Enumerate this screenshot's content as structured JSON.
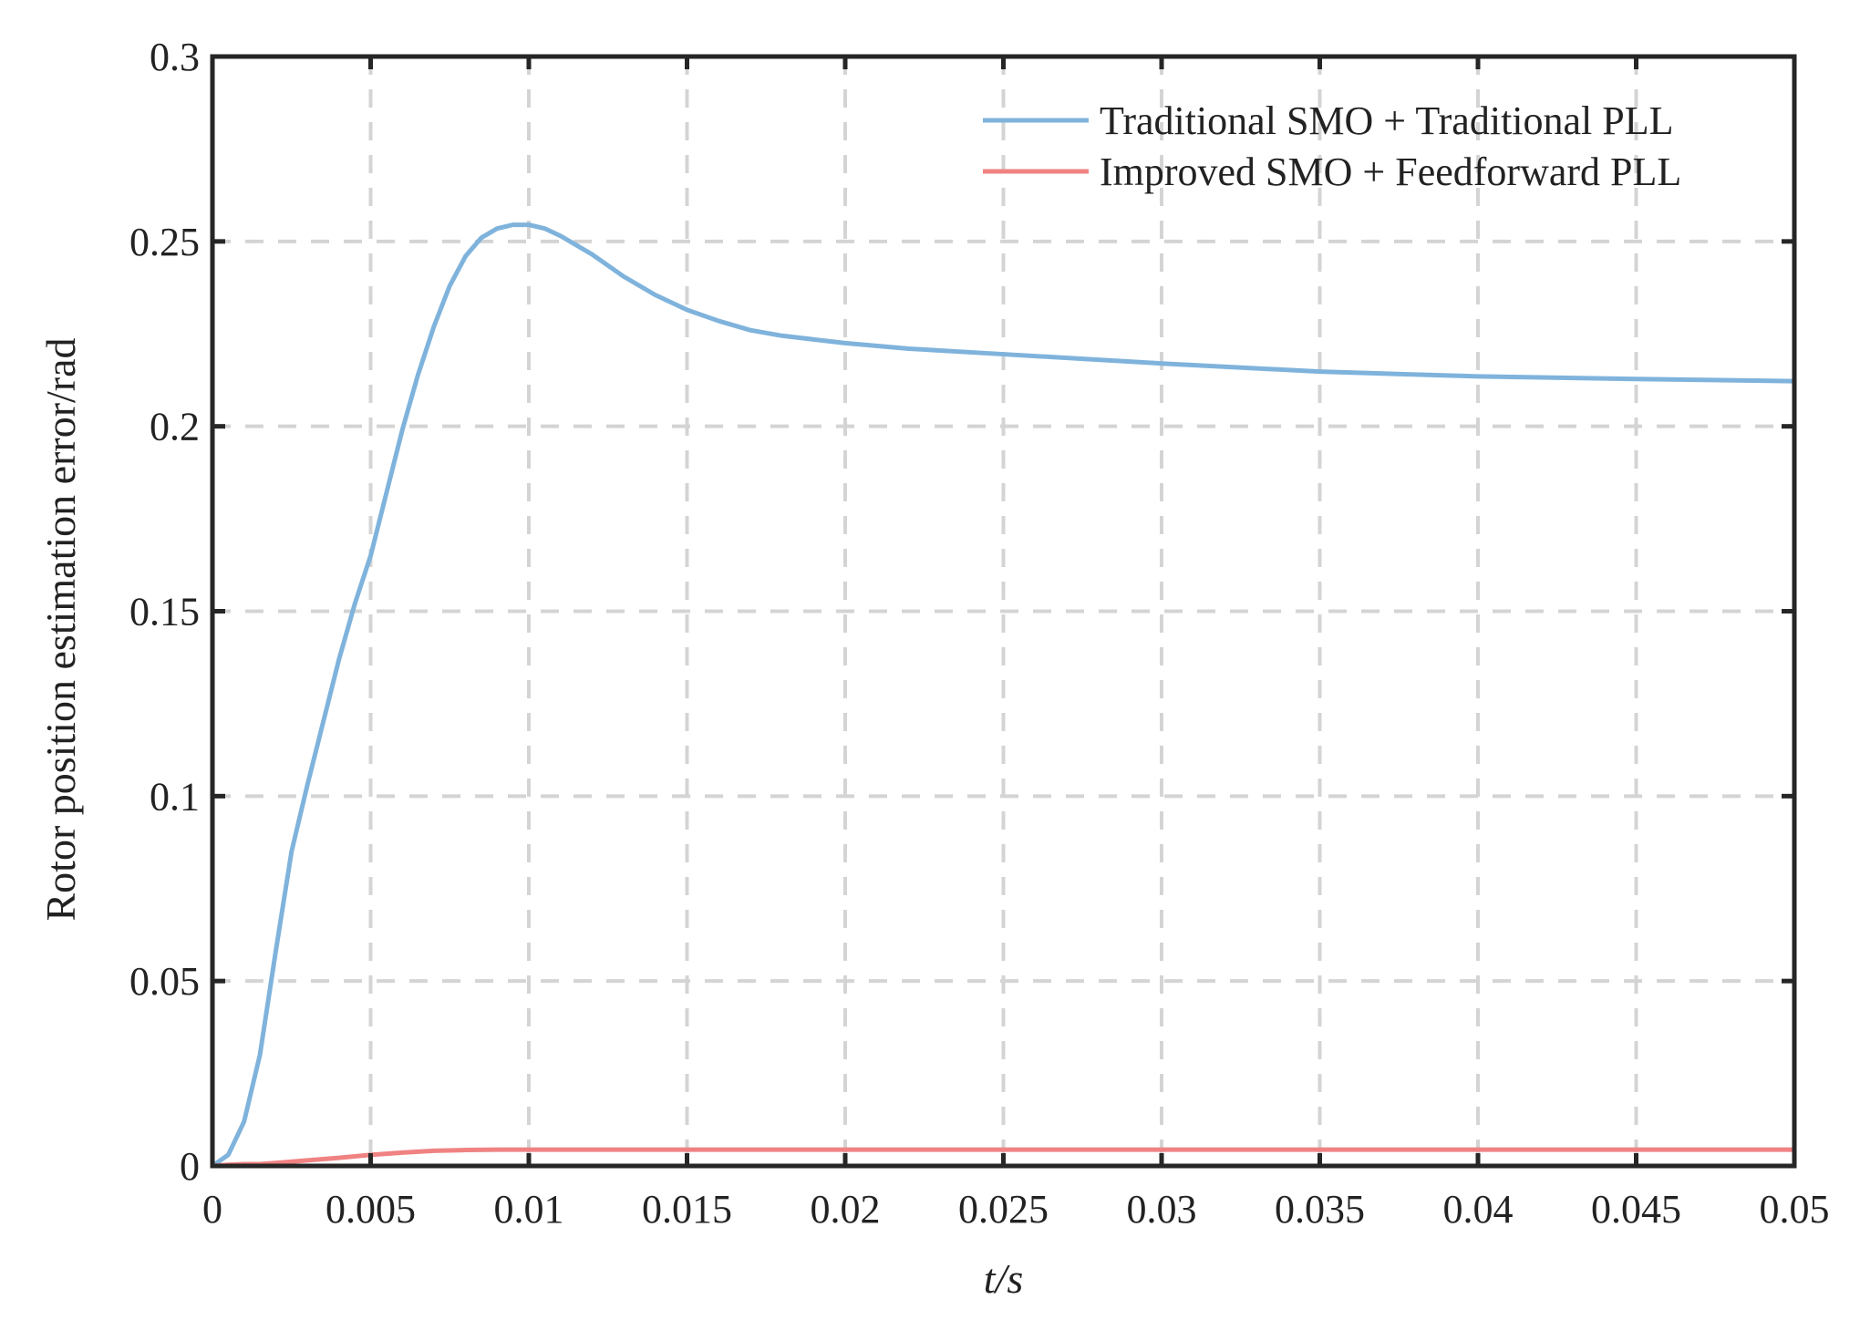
{
  "chart_data": {
    "type": "line",
    "xlabel": "t/s",
    "ylabel": "Rotor position estimation error/rad",
    "xlim": [
      0,
      0.05
    ],
    "ylim": [
      0,
      0.3
    ],
    "xticks": [
      0,
      0.005,
      0.01,
      0.015,
      0.02,
      0.025,
      0.03,
      0.035,
      0.04,
      0.045,
      0.05
    ],
    "xtick_labels": [
      "0",
      "0.005",
      "0.01",
      "0.015",
      "0.02",
      "0.025",
      "0.03",
      "0.035",
      "0.04",
      "0.045",
      "0.05"
    ],
    "yticks": [
      0,
      0.05,
      0.1,
      0.15,
      0.2,
      0.25,
      0.3
    ],
    "ytick_labels": [
      "0",
      "0.05",
      "0.1",
      "0.15",
      "0.2",
      "0.25",
      "0.3"
    ],
    "grid": true,
    "legend_position": "top-right",
    "series": [
      {
        "name": "Traditional SMO + Traditional PLL",
        "color": "#7fb3dc",
        "x": [
          0,
          0.0005,
          0.001,
          0.0015,
          0.002,
          0.0025,
          0.003,
          0.0035,
          0.004,
          0.0045,
          0.005,
          0.0055,
          0.006,
          0.0065,
          0.007,
          0.0075,
          0.008,
          0.0085,
          0.009,
          0.0095,
          0.01,
          0.0105,
          0.011,
          0.012,
          0.013,
          0.014,
          0.015,
          0.016,
          0.017,
          0.018,
          0.019,
          0.02,
          0.022,
          0.025,
          0.028,
          0.03,
          0.035,
          0.04,
          0.045,
          0.05
        ],
        "y": [
          0,
          0.003,
          0.012,
          0.03,
          0.058,
          0.085,
          0.103,
          0.12,
          0.137,
          0.152,
          0.165,
          0.182,
          0.199,
          0.214,
          0.227,
          0.238,
          0.246,
          0.251,
          0.2535,
          0.2545,
          0.2545,
          0.2535,
          0.2515,
          0.2465,
          0.2405,
          0.2355,
          0.2315,
          0.2285,
          0.226,
          0.2245,
          0.2235,
          0.2225,
          0.221,
          0.2195,
          0.218,
          0.217,
          0.2148,
          0.2135,
          0.2128,
          0.2122
        ]
      },
      {
        "name": "Improved SMO + Feedforward PLL",
        "color": "#f08282",
        "x": [
          0,
          0.0005,
          0.001,
          0.0015,
          0.002,
          0.003,
          0.004,
          0.005,
          0.006,
          0.007,
          0.008,
          0.009,
          0.01,
          0.015,
          0.02,
          0.025,
          0.03,
          0.035,
          0.04,
          0.045,
          0.05
        ],
        "y": [
          0,
          0.0003,
          0.0005,
          0.0005,
          0.0008,
          0.0015,
          0.0022,
          0.003,
          0.0036,
          0.0041,
          0.0043,
          0.0044,
          0.0044,
          0.0044,
          0.0044,
          0.0044,
          0.0044,
          0.0044,
          0.0044,
          0.0044,
          0.0044
        ]
      }
    ]
  }
}
